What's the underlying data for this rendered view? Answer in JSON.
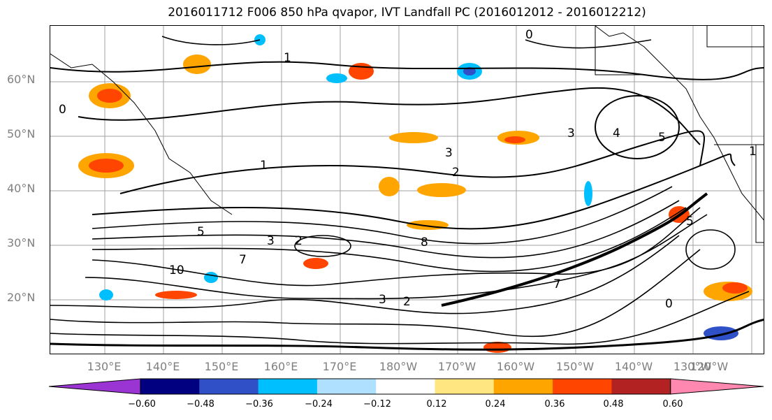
{
  "title": "2016011712 F006 850 hPa qvapor, IVT Landfall PC (2016012012 - 2016012212)",
  "map": {
    "lat_labels": [
      "60°N",
      "50°N",
      "40°N",
      "30°N",
      "20°N"
    ],
    "lon_labels": [
      "130°E",
      "140°E",
      "150°E",
      "160°E",
      "170°E",
      "180°W",
      "170°W",
      "160°W",
      "150°W",
      "140°W",
      "130°W",
      "120°W"
    ],
    "contour_labels": [
      "0",
      "1",
      "1",
      "2",
      "3",
      "3",
      "4",
      "5",
      "5",
      "7",
      "10",
      "0",
      "2",
      "3",
      "5",
      "7",
      "8",
      "3",
      "0",
      "1",
      "2"
    ]
  },
  "colorbar": {
    "tick_labels": [
      "−0.60",
      "−0.48",
      "−0.36",
      "−0.24",
      "−0.12",
      "0.12",
      "0.24",
      "0.36",
      "0.48",
      "0.60"
    ],
    "colors": [
      "#9a35d4",
      "#000080",
      "#3050c8",
      "#00bfff",
      "#b0e0ff",
      "#ffffff",
      "#ffe680",
      "#ffa500",
      "#ff4500",
      "#b22222",
      "#ff88b0"
    ]
  }
}
